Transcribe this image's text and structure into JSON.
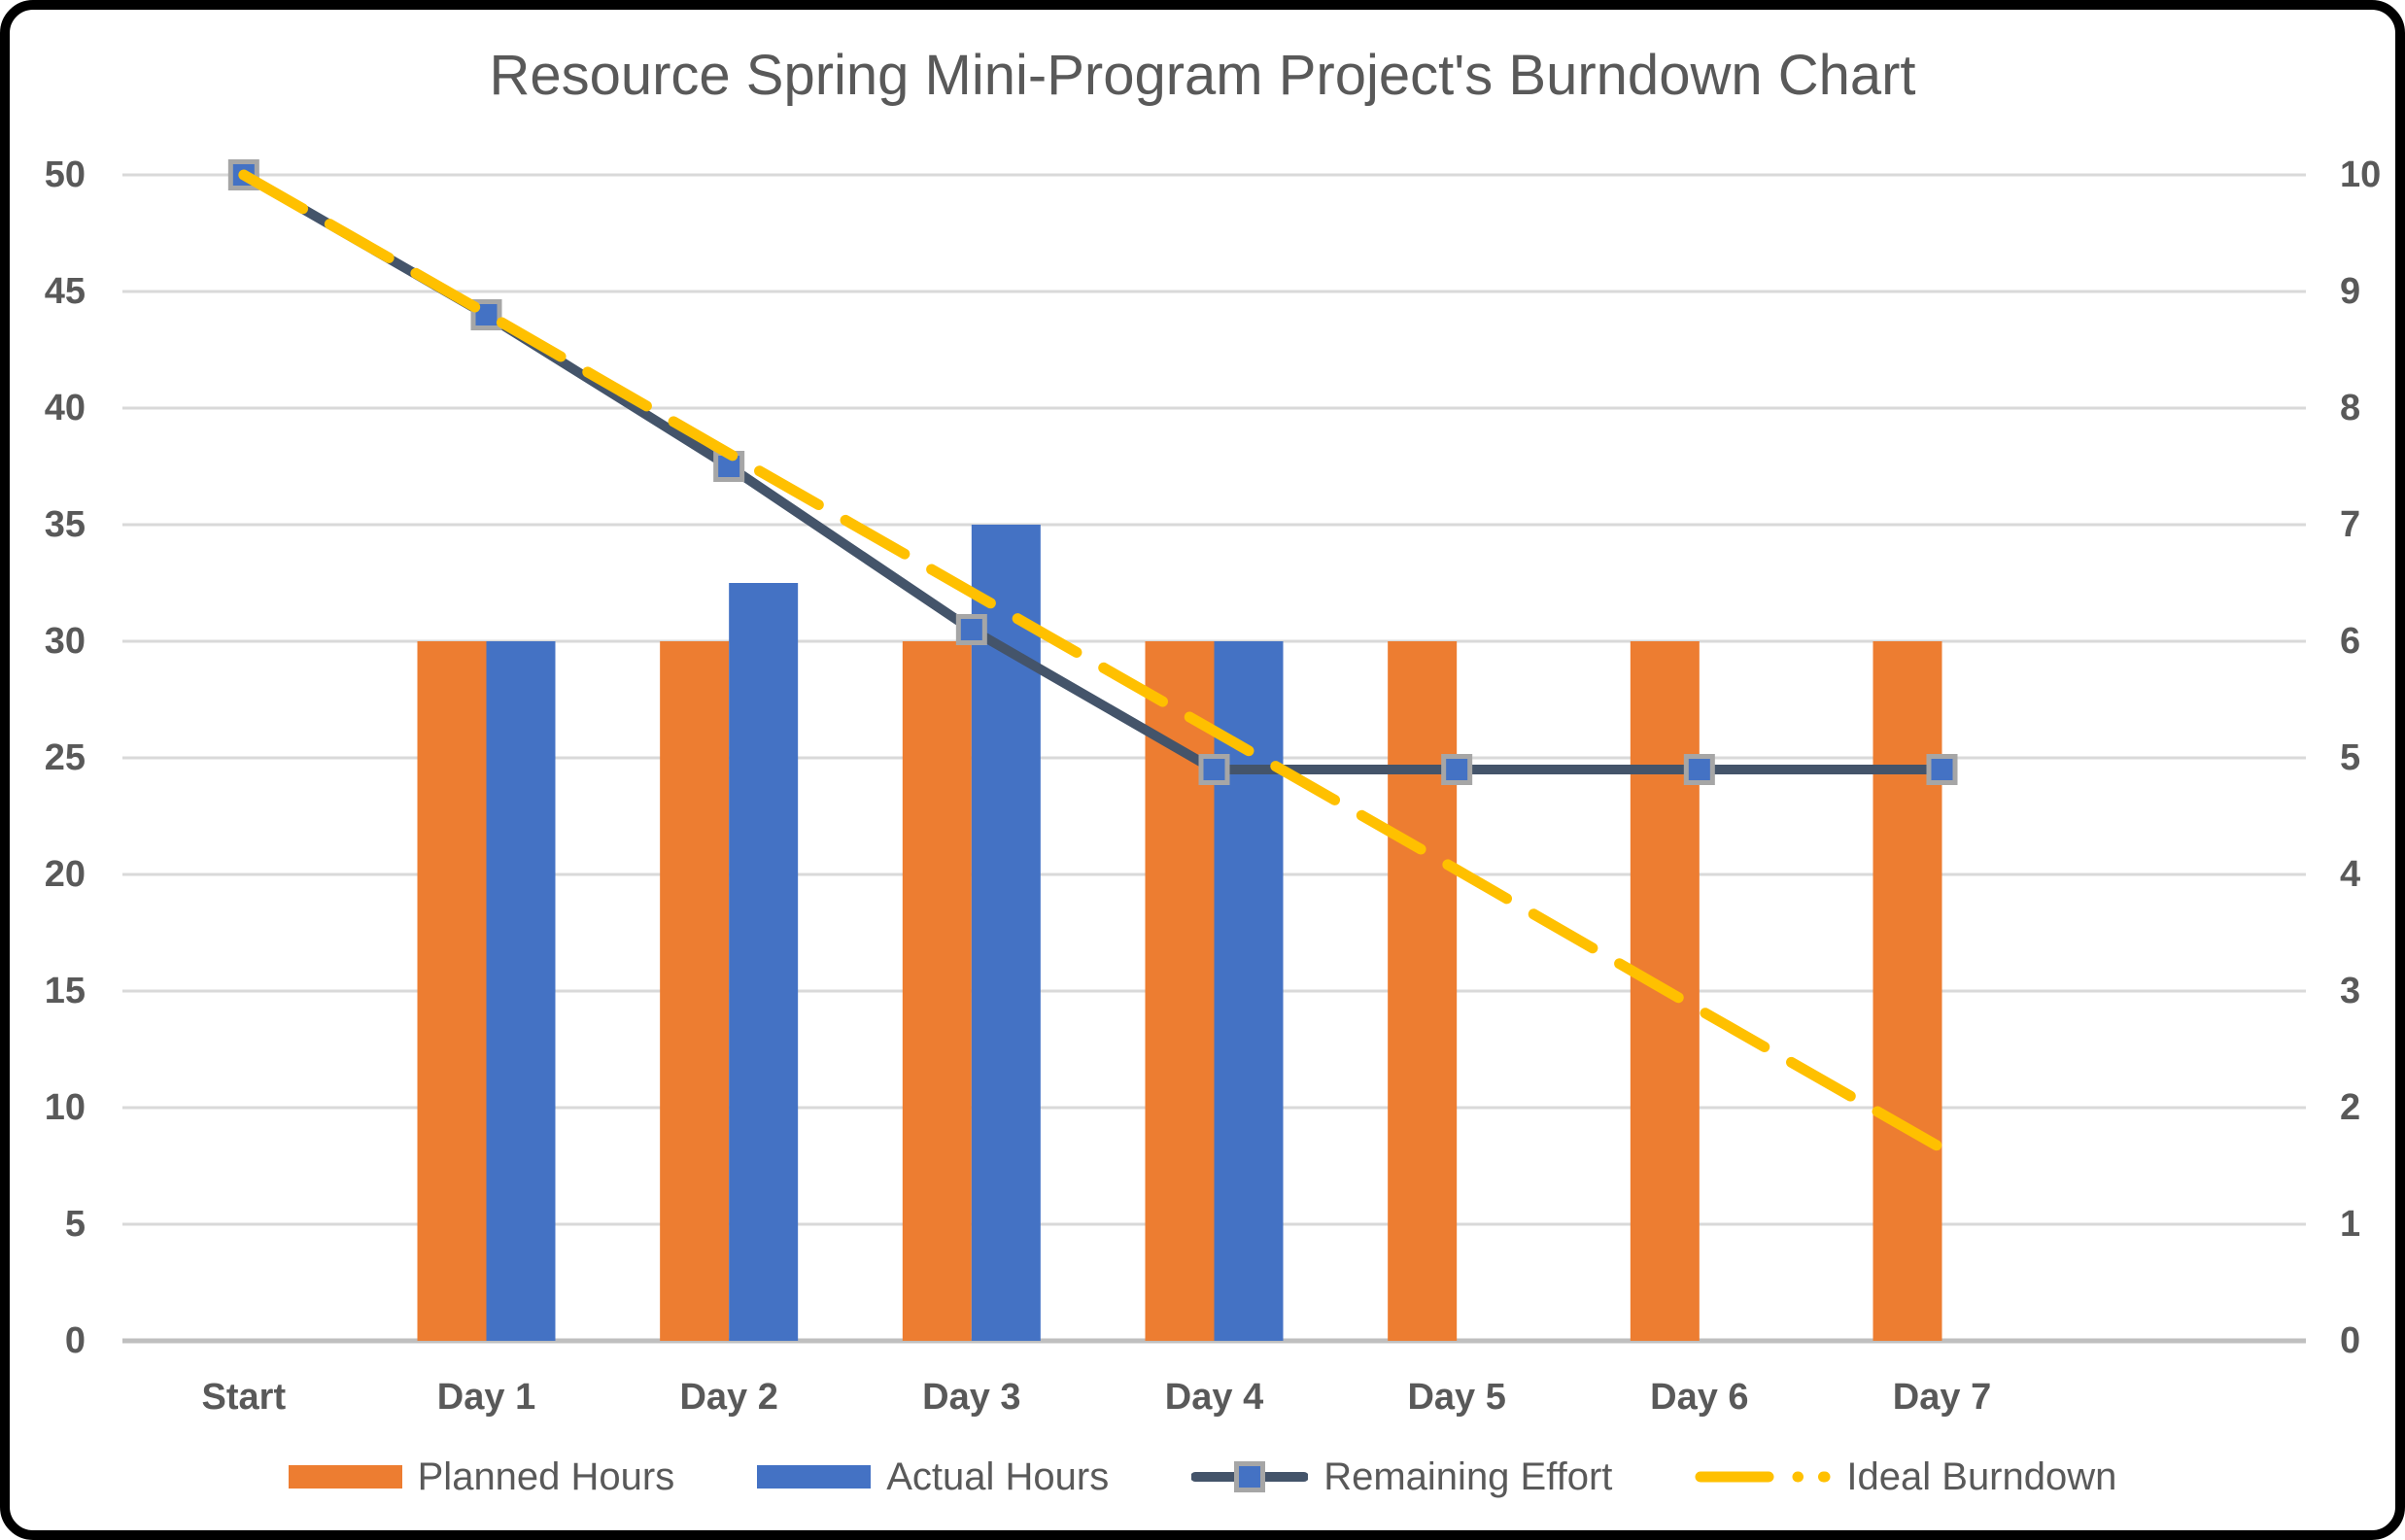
{
  "title": "Resource Spring Mini-Program Project's Burndown Chart",
  "chart_data": {
    "type": "combo-bar-line",
    "title": "Resource Spring Mini-Program Project's Burndown Chart",
    "categories": [
      "Start",
      "Day 1",
      "Day 2",
      "Day 3",
      "Day 4",
      "Day 5",
      "Day 6",
      "Day 7",
      ""
    ],
    "bar_series": [
      {
        "name": "Planned Hours",
        "axis": "left",
        "color": "#ED7D31",
        "values": [
          null,
          30,
          30,
          30,
          30,
          30,
          30,
          30,
          null
        ]
      },
      {
        "name": "Actual Hours",
        "axis": "left",
        "color": "#4472C4",
        "values": [
          null,
          30,
          32.5,
          35,
          30,
          null,
          null,
          null,
          null
        ]
      }
    ],
    "line_series": [
      {
        "name": "Remaining Effort",
        "axis": "right",
        "color": "#44546A",
        "style": "solid",
        "marker": "square",
        "marker_fill": "#4472C4",
        "marker_border": "#A6A6A6",
        "values": [
          10,
          8.8,
          7.5,
          6.1,
          4.9,
          4.9,
          4.9,
          4.9,
          null
        ]
      },
      {
        "name": "Ideal Burndown",
        "axis": "right",
        "color": "#FFC000",
        "style": "dashed",
        "marker": "none",
        "values": [
          10,
          8.81,
          7.61,
          6.42,
          5.23,
          4.04,
          2.84,
          1.65,
          null
        ]
      }
    ],
    "left_axis": {
      "min": 0,
      "max": 50,
      "step": 5,
      "ticks": [
        "0",
        "5",
        "10",
        "15",
        "20",
        "25",
        "30",
        "35",
        "40",
        "45",
        "50"
      ]
    },
    "right_axis": {
      "min": 0,
      "max": 10,
      "step": 1,
      "ticks": [
        "0",
        "1",
        "2",
        "3",
        "4",
        "5",
        "6",
        "7",
        "8",
        "9",
        "10"
      ]
    },
    "grid": true,
    "grid_color": "#D9D9D9",
    "axis_line_color": "#BFBFBF",
    "label_color": "#595959",
    "legend_position": "bottom"
  },
  "legend": {
    "items": [
      {
        "label": "Planned Hours",
        "swatch": "bar",
        "color": "#ED7D31"
      },
      {
        "label": "Actual Hours",
        "swatch": "bar",
        "color": "#4472C4"
      },
      {
        "label": "Remaining Effort",
        "swatch": "line-marker",
        "color": "#44546A",
        "marker_fill": "#4472C4",
        "marker_border": "#A6A6A6"
      },
      {
        "label": "Ideal Burndown",
        "swatch": "dash",
        "color": "#FFC000"
      }
    ]
  }
}
